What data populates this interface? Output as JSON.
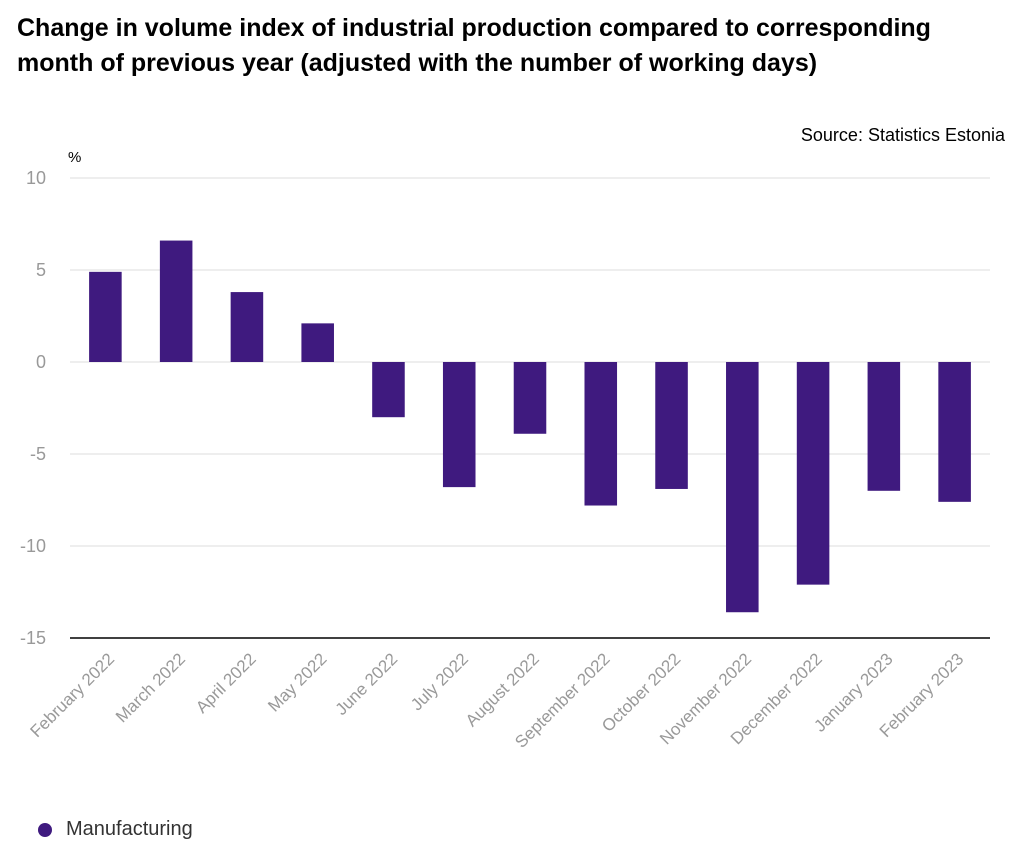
{
  "title": "Change in volume index of industrial production compared to corresponding month of previous year (adjusted with the number of working days)",
  "source": "Source: Statistics Estonia",
  "colors": {
    "bar": "#3f1a7f",
    "grid": "#dddddd",
    "baseline": "#000000",
    "tick_text": "#999999",
    "legend_text": "#333333"
  },
  "chart_data": {
    "type": "bar",
    "title": "Change in volume index of industrial production compared to corresponding month of previous year (adjusted with the number of working days)",
    "ylabel": "%",
    "xlabel": "",
    "categories": [
      "February 2022",
      "March 2022",
      "April 2022",
      "May 2022",
      "June 2022",
      "July 2022",
      "August 2022",
      "September 2022",
      "October 2022",
      "November 2022",
      "December 2022",
      "January 2023",
      "February 2023"
    ],
    "series": [
      {
        "name": "Manufacturing",
        "values": [
          4.9,
          6.6,
          3.8,
          2.1,
          -3.0,
          -6.8,
          -3.9,
          -7.8,
          -6.9,
          -13.6,
          -12.1,
          -7.0,
          -7.6
        ]
      }
    ],
    "ylim": [
      -15,
      10
    ],
    "yticks": [
      10,
      5,
      0,
      -5,
      -10,
      -15
    ],
    "grid": true,
    "legend": "bottom-left"
  }
}
